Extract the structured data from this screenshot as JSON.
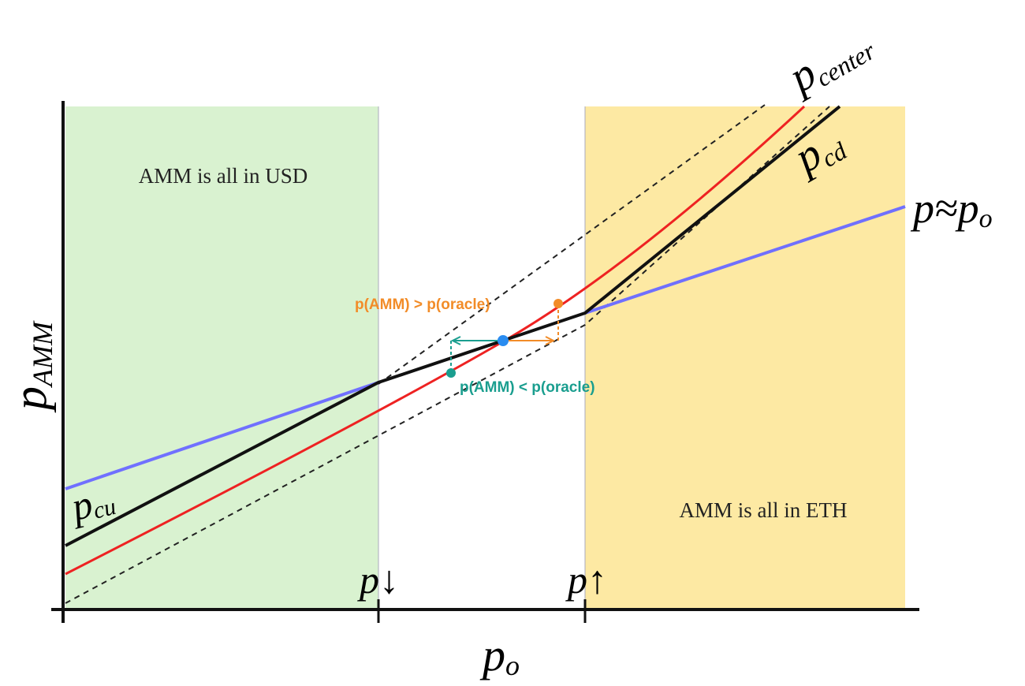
{
  "regions": {
    "left": "AMM is all in USD",
    "right": "AMM is all in ETH"
  },
  "curve_labels": {
    "p_center": {
      "main": "p",
      "sub": "center"
    },
    "p_cd": {
      "main": "p",
      "sub": "cd"
    },
    "p_approx": {
      "main": "p≈p",
      "sub": "o"
    },
    "p_cu": {
      "main": "p",
      "sub": "cu"
    }
  },
  "axes": {
    "y_label": {
      "main": "p",
      "sub": "AMM"
    },
    "x_label": {
      "main": "p",
      "sub": "o"
    },
    "tick_down": "p↓",
    "tick_up": "p↑"
  },
  "annotations": {
    "above": "p(AMM) > p(oracle)",
    "below": "p(AMM) < p(oracle)"
  }
}
